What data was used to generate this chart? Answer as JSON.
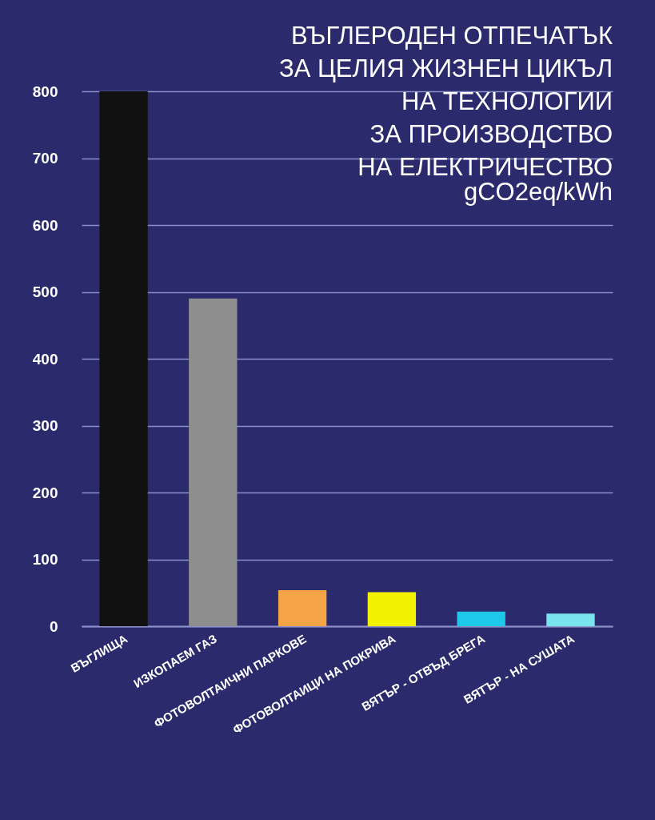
{
  "chart_data": {
    "type": "bar",
    "title": "ВЪГЛЕРОДЕН ОТПЕЧАТЪК\nЗА ЦЕЛИЯ ЖИЗНЕН ЦИКЪЛ\nНА ТЕХНОЛОГИИ\nЗА ПРОИЗВОДСТВО\nНА ЕЛЕКТРИЧЕСТВО",
    "subtitle": "gCO2eq/kWh",
    "categories": [
      "ВЪГЛИЩА",
      "ИЗКОПАЕМ ГАЗ",
      "ФОТОВОЛТАИЧНИ ПАРКОВЕ",
      "ФОТОВОЛТАИЦИ НА ПОКРИВА",
      "ВЯТЪР - ОТВЪД БРЕГА",
      "ВЯТЪР - НА СУШАТА"
    ],
    "values": [
      800,
      490,
      54,
      51,
      22,
      19
    ],
    "colors": [
      "#111111",
      "#8e8e8e",
      "#f4a447",
      "#f2f200",
      "#1ec8e8",
      "#7ae4ee"
    ],
    "ylim": [
      0,
      800
    ],
    "yticks": [
      0,
      100,
      200,
      300,
      400,
      500,
      600,
      700,
      800
    ],
    "grid": "y"
  }
}
